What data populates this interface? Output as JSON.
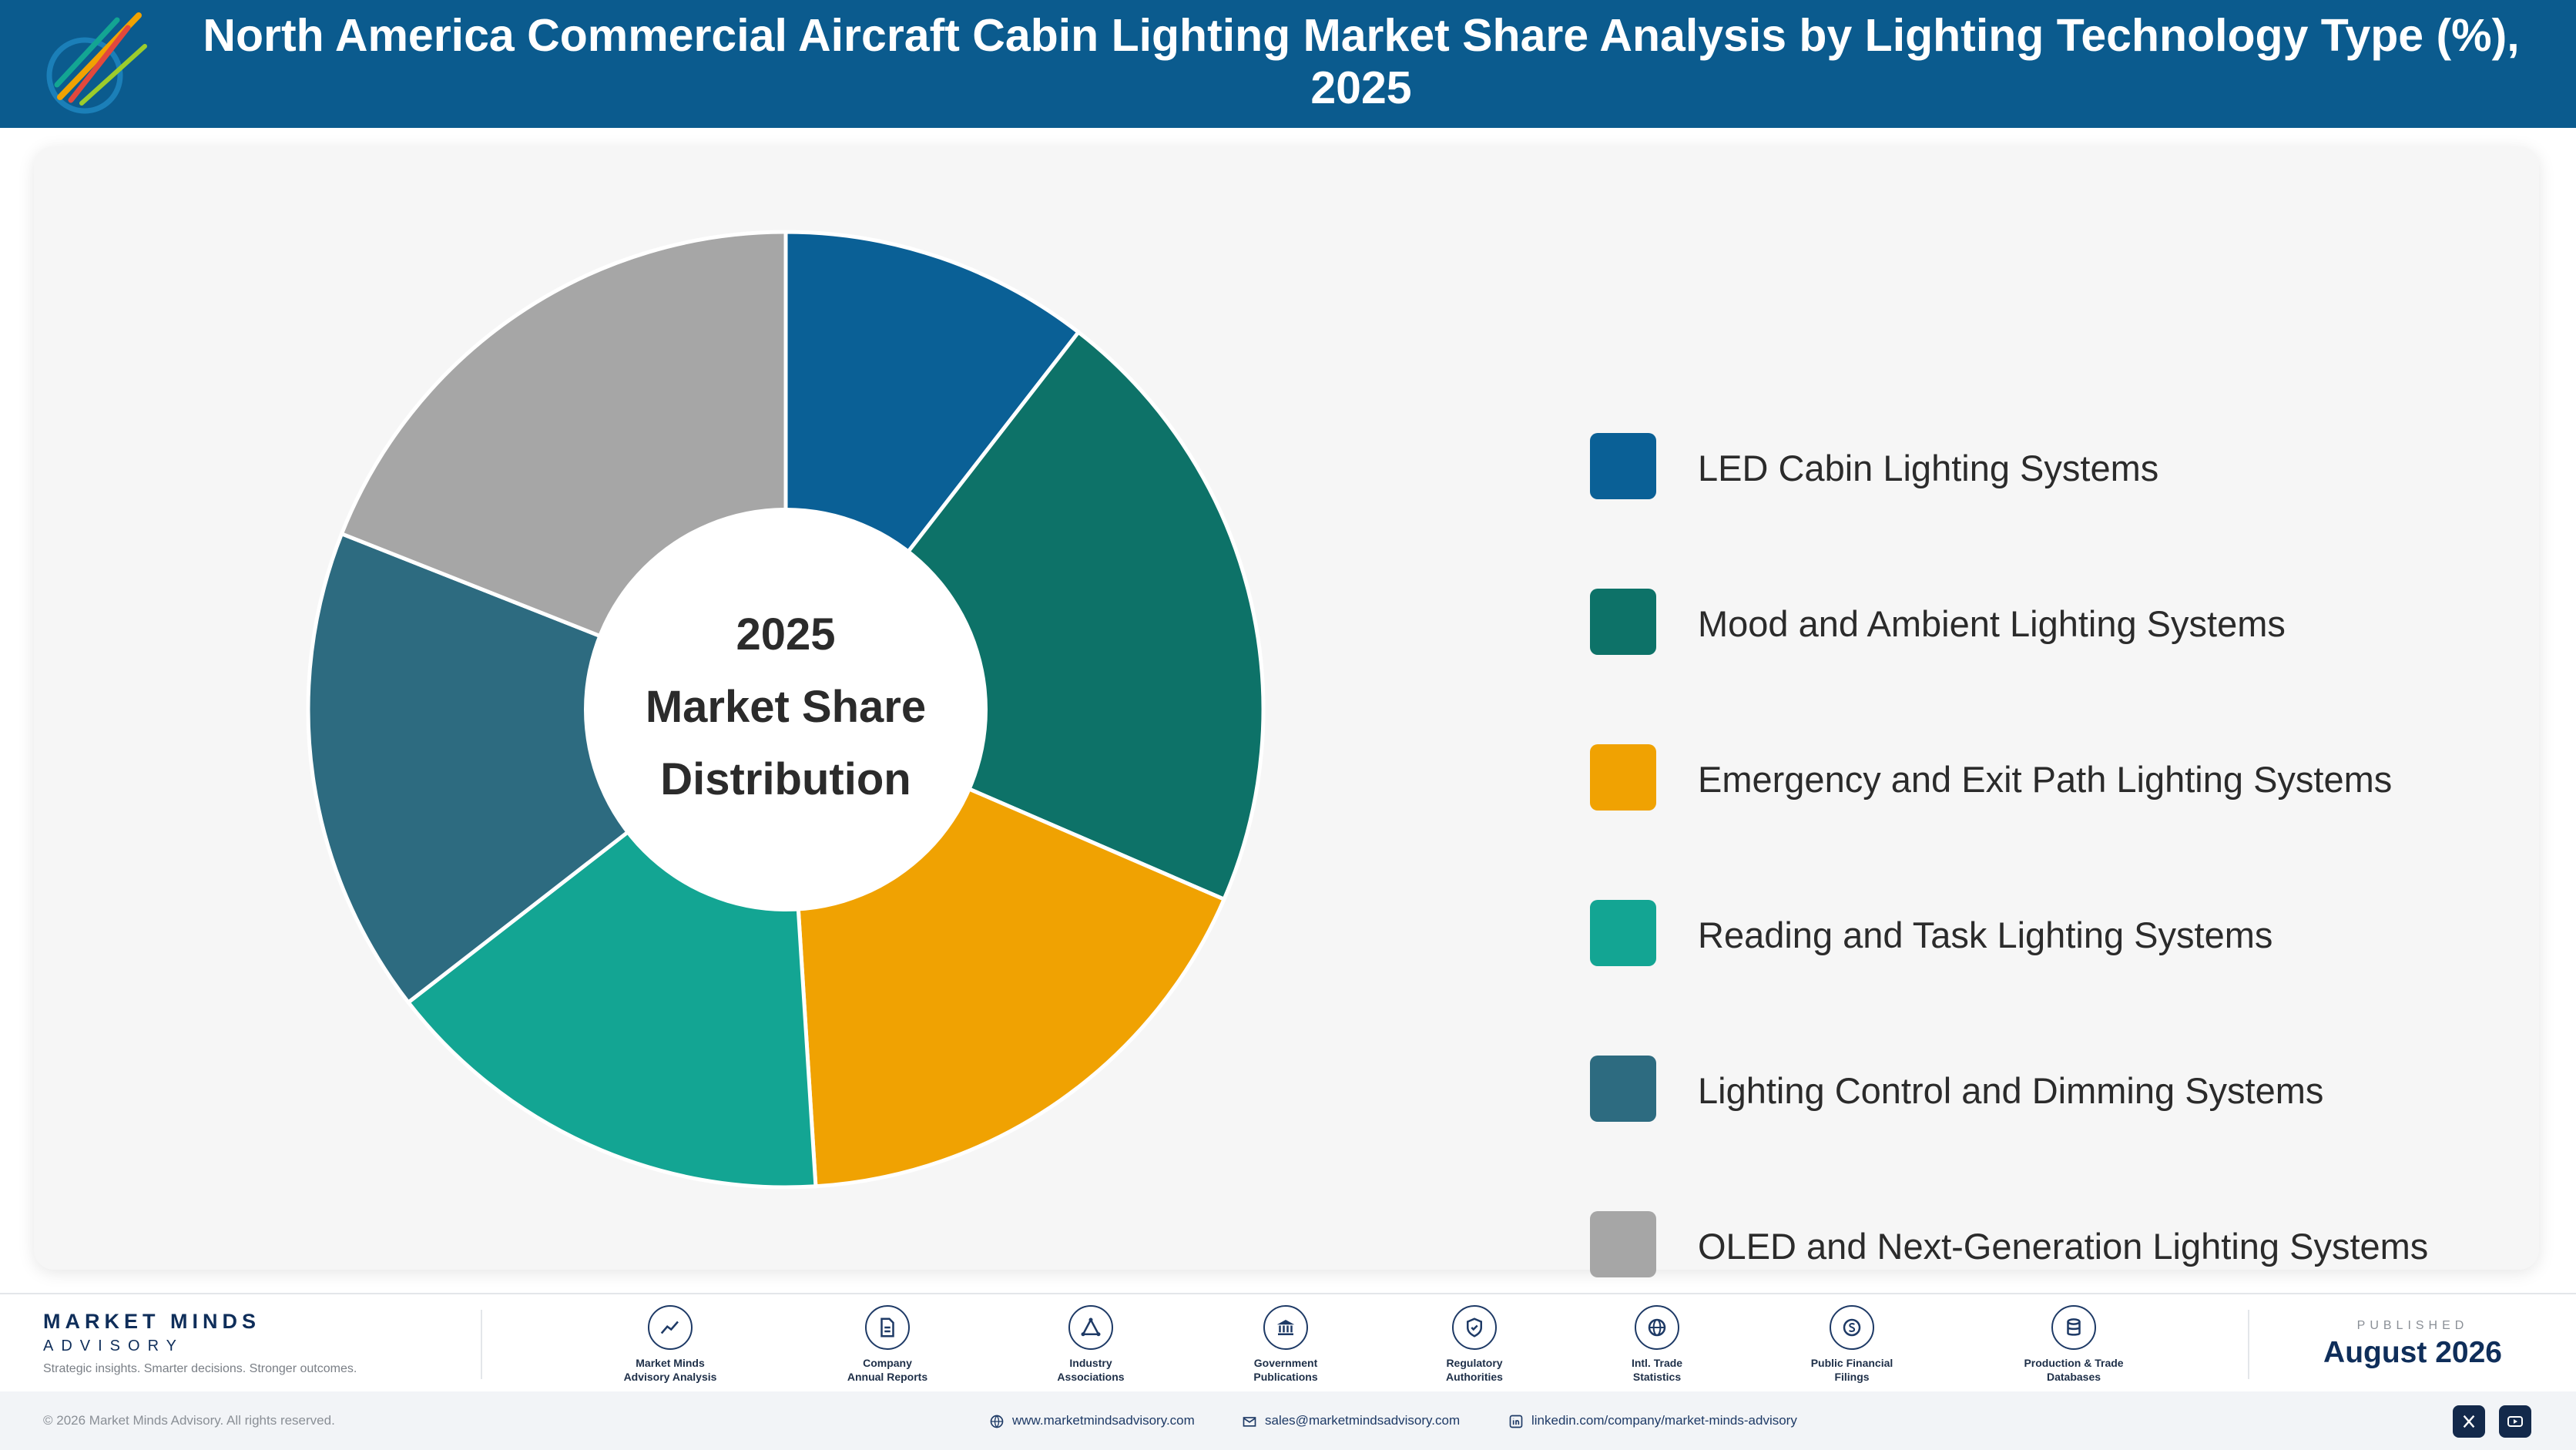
{
  "header": {
    "title": "North America Commercial Aircraft Cabin Lighting Market Share Analysis by Lighting Technology Type (%), 2025"
  },
  "chart_data": {
    "type": "pie",
    "title": "North America Commercial Aircraft Cabin Lighting Market Share Analysis by Lighting Technology Type (%), 2025",
    "center_label": [
      "2025",
      "Market Share",
      "Distribution"
    ],
    "legend_position": "right",
    "categories": [
      "LED Cabin Lighting Systems",
      "Mood and Ambient Lighting Systems",
      "Emergency and Exit Path Lighting Systems",
      "Reading and Task Lighting Systems",
      "Lighting Control and Dimming Systems",
      "OLED and Next-Generation Lighting Systems"
    ],
    "values": [
      10.5,
      21.0,
      17.5,
      15.5,
      16.5,
      19.0
    ],
    "colors": [
      "#0a6096",
      "#0d7268",
      "#f0a202",
      "#13a593",
      "#2d6b80",
      "#a6a6a6"
    ]
  },
  "footer": {
    "brand_name": "MARKET MINDS",
    "brand_sub": "ADVISORY",
    "tagline": "Strategic insights. Smarter decisions. Stronger outcomes.",
    "sources": [
      {
        "label": "Market Minds\nAdvisory Analysis",
        "icon": "chart-line-icon"
      },
      {
        "label": "Company\nAnnual Reports",
        "icon": "document-icon"
      },
      {
        "label": "Industry\nAssociations",
        "icon": "network-icon"
      },
      {
        "label": "Government\nPublications",
        "icon": "government-building-icon"
      },
      {
        "label": "Regulatory\nAuthorities",
        "icon": "shield-check-icon"
      },
      {
        "label": "Intl. Trade\nStatistics",
        "icon": "globe-icon"
      },
      {
        "label": "Public Financial\nFilings",
        "icon": "dollar-coin-icon"
      },
      {
        "label": "Production & Trade\nDatabases",
        "icon": "database-icon"
      }
    ],
    "published_label": "PUBLISHED",
    "published_date": "August 2026"
  },
  "bottom_bar": {
    "copyright": "© 2026 Market Minds Advisory. All rights reserved.",
    "website": "www.marketmindsadvisory.com",
    "email": "sales@marketmindsadvisory.com",
    "linkedin": "linkedin.com/company/market-minds-advisory"
  }
}
